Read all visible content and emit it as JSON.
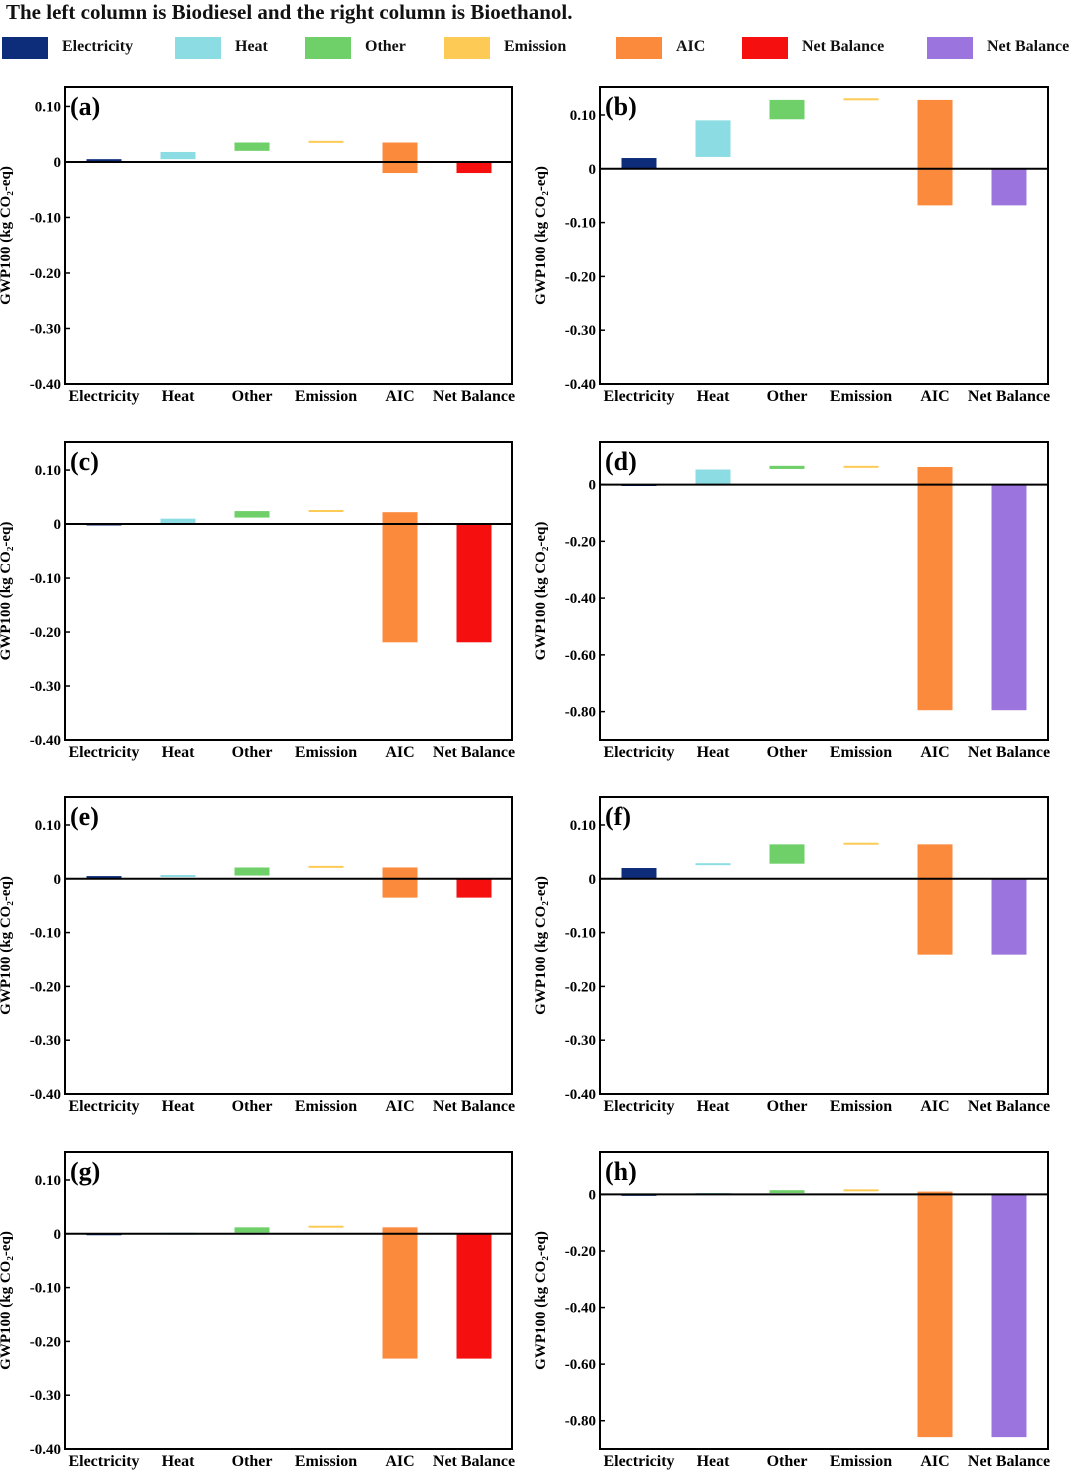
{
  "title": "The left column is Biodiesel and the right column is Bioethanol.",
  "colors": {
    "electricity": "#0d2c7a",
    "heat": "#8cdde3",
    "other": "#6fd06a",
    "emission": "#fdcb55",
    "aic": "#fb8a3c",
    "net_red": "#f60f0f",
    "net_purple": "#9b74dd"
  },
  "legend": [
    {
      "label": "Electricity",
      "color_key": "electricity"
    },
    {
      "label": "Heat",
      "color_key": "heat"
    },
    {
      "label": "Other",
      "color_key": "other"
    },
    {
      "label": "Emission",
      "color_key": "emission"
    },
    {
      "label": "AIC",
      "color_key": "aic"
    },
    {
      "label": "Net Balance",
      "color_key": "net_red"
    },
    {
      "label": "Net Balance",
      "color_key": "net_purple"
    }
  ],
  "chart_data": [
    {
      "panel": "(a)",
      "type": "waterfall",
      "ylabel": "GWP100 (kg CO₂-eq)",
      "ylim": [
        -0.4,
        0.135
      ],
      "yticks": [
        0.1,
        0,
        -0.1,
        -0.2,
        -0.3,
        -0.4
      ],
      "ytick_labels": [
        "0.10",
        "0",
        "-0.10",
        "-0.20",
        "-0.30",
        "-0.40"
      ],
      "categories": [
        "Electricity",
        "Heat",
        "Other",
        "Emission",
        "AIC",
        "Net Balance"
      ],
      "bars": [
        {
          "category": "Electricity",
          "start": 0,
          "end": 0.005,
          "color_key": "electricity"
        },
        {
          "category": "Heat",
          "start": 0.005,
          "end": 0.018,
          "color_key": "heat"
        },
        {
          "category": "Other",
          "start": 0.02,
          "end": 0.035,
          "color_key": "other"
        },
        {
          "category": "Emission",
          "start": 0.035,
          "end": 0.038,
          "color_key": "emission"
        },
        {
          "category": "AIC",
          "start": 0.035,
          "end": -0.02,
          "color_key": "aic"
        },
        {
          "category": "Net Balance",
          "start": 0,
          "end": -0.02,
          "color_key": "net_red"
        }
      ]
    },
    {
      "panel": "(b)",
      "type": "waterfall",
      "ylabel": "GWP100 (kg CO₂-eq)",
      "ylim": [
        -0.4,
        0.152
      ],
      "yticks": [
        0.1,
        0,
        -0.1,
        -0.2,
        -0.3,
        -0.4
      ],
      "ytick_labels": [
        "0.10",
        "0",
        "-0.10",
        "-0.20",
        "-0.30",
        "-0.40"
      ],
      "categories": [
        "Electricity",
        "Heat",
        "Other",
        "Emission",
        "AIC",
        "Net Balance"
      ],
      "bars": [
        {
          "category": "Electricity",
          "start": 0,
          "end": 0.02,
          "color_key": "electricity"
        },
        {
          "category": "Heat",
          "start": 0.022,
          "end": 0.09,
          "color_key": "heat"
        },
        {
          "category": "Other",
          "start": 0.092,
          "end": 0.128,
          "color_key": "other"
        },
        {
          "category": "Emission",
          "start": 0.128,
          "end": 0.131,
          "color_key": "emission"
        },
        {
          "category": "AIC",
          "start": 0.128,
          "end": -0.068,
          "color_key": "aic"
        },
        {
          "category": "Net Balance",
          "start": 0,
          "end": -0.068,
          "color_key": "net_purple"
        }
      ]
    },
    {
      "panel": "(c)",
      "type": "waterfall",
      "ylabel": "GWP100 (kg CO₂-eq)",
      "ylim": [
        -0.4,
        0.152
      ],
      "yticks": [
        0.1,
        0,
        -0.1,
        -0.2,
        -0.3,
        -0.4
      ],
      "ytick_labels": [
        "0.10",
        "0",
        "-0.10",
        "-0.20",
        "-0.30",
        "-0.40"
      ],
      "categories": [
        "Electricity",
        "Heat",
        "Other",
        "Emission",
        "AIC",
        "Net Balance"
      ],
      "bars": [
        {
          "category": "Electricity",
          "start": 0,
          "end": 0.001,
          "color_key": "electricity"
        },
        {
          "category": "Heat",
          "start": 0.002,
          "end": 0.01,
          "color_key": "heat"
        },
        {
          "category": "Other",
          "start": 0.012,
          "end": 0.024,
          "color_key": "other"
        },
        {
          "category": "Emission",
          "start": 0.024,
          "end": 0.026,
          "color_key": "emission"
        },
        {
          "category": "AIC",
          "start": 0.022,
          "end": -0.219,
          "color_key": "aic"
        },
        {
          "category": "Net Balance",
          "start": 0,
          "end": -0.219,
          "color_key": "net_red"
        }
      ]
    },
    {
      "panel": "(d)",
      "type": "waterfall",
      "ylabel": "GWP100 (kg CO₂-eq)",
      "ylim": [
        -0.9,
        0.15
      ],
      "yticks": [
        0,
        -0.2,
        -0.4,
        -0.6,
        -0.8
      ],
      "ytick_labels": [
        "0",
        "-0.20",
        "-0.40",
        "-0.60",
        "-0.80"
      ],
      "categories": [
        "Electricity",
        "Heat",
        "Other",
        "Emission",
        "AIC",
        "Net Balance"
      ],
      "bars": [
        {
          "category": "Electricity",
          "start": 0,
          "end": 0.002,
          "color_key": "electricity"
        },
        {
          "category": "Heat",
          "start": 0.002,
          "end": 0.053,
          "color_key": "heat"
        },
        {
          "category": "Other",
          "start": 0.055,
          "end": 0.066,
          "color_key": "other"
        },
        {
          "category": "Emission",
          "start": 0.06,
          "end": 0.066,
          "color_key": "emission"
        },
        {
          "category": "AIC",
          "start": 0.062,
          "end": -0.795,
          "color_key": "aic"
        },
        {
          "category": "Net Balance",
          "start": 0,
          "end": -0.795,
          "color_key": "net_purple"
        }
      ]
    },
    {
      "panel": "(e)",
      "type": "waterfall",
      "ylabel": "GWP100 (kg CO₂-eq)",
      "ylim": [
        -0.4,
        0.152
      ],
      "yticks": [
        0.1,
        0,
        -0.1,
        -0.2,
        -0.3,
        -0.4
      ],
      "ytick_labels": [
        "0.10",
        "0",
        "-0.10",
        "-0.20",
        "-0.30",
        "-0.40"
      ],
      "categories": [
        "Electricity",
        "Heat",
        "Other",
        "Emission",
        "AIC",
        "Net Balance"
      ],
      "bars": [
        {
          "category": "Electricity",
          "start": 0,
          "end": 0.005,
          "color_key": "electricity"
        },
        {
          "category": "Heat",
          "start": 0.004,
          "end": 0.007,
          "color_key": "heat"
        },
        {
          "category": "Other",
          "start": 0.006,
          "end": 0.021,
          "color_key": "other"
        },
        {
          "category": "Emission",
          "start": 0.021,
          "end": 0.024,
          "color_key": "emission"
        },
        {
          "category": "AIC",
          "start": 0.021,
          "end": -0.035,
          "color_key": "aic"
        },
        {
          "category": "Net Balance",
          "start": 0,
          "end": -0.035,
          "color_key": "net_red"
        }
      ]
    },
    {
      "panel": "(f)",
      "type": "waterfall",
      "ylabel": "GWP100 (kg CO₂-eq)",
      "ylim": [
        -0.4,
        0.152
      ],
      "yticks": [
        0.1,
        0,
        -0.1,
        -0.2,
        -0.3,
        -0.4
      ],
      "ytick_labels": [
        "0.10",
        "0",
        "-0.10",
        "-0.20",
        "-0.30",
        "-0.40"
      ],
      "categories": [
        "Electricity",
        "Heat",
        "Other",
        "Emission",
        "AIC",
        "Net Balance"
      ],
      "bars": [
        {
          "category": "Electricity",
          "start": 0,
          "end": 0.02,
          "color_key": "electricity"
        },
        {
          "category": "Heat",
          "start": 0.026,
          "end": 0.029,
          "color_key": "heat"
        },
        {
          "category": "Other",
          "start": 0.028,
          "end": 0.064,
          "color_key": "other"
        },
        {
          "category": "Emission",
          "start": 0.064,
          "end": 0.067,
          "color_key": "emission"
        },
        {
          "category": "AIC",
          "start": 0.064,
          "end": -0.141,
          "color_key": "aic"
        },
        {
          "category": "Net Balance",
          "start": 0,
          "end": -0.141,
          "color_key": "net_purple"
        }
      ]
    },
    {
      "panel": "(g)",
      "type": "waterfall",
      "ylabel": "GWP100 (kg CO₂-eq)",
      "ylim": [
        -0.4,
        0.152
      ],
      "yticks": [
        0.1,
        0,
        -0.1,
        -0.2,
        -0.3,
        -0.4
      ],
      "ytick_labels": [
        "0.10",
        "0",
        "-0.10",
        "-0.20",
        "-0.30",
        "-0.40"
      ],
      "categories": [
        "Electricity",
        "Heat",
        "Other",
        "Emission",
        "AIC",
        "Net Balance"
      ],
      "bars": [
        {
          "category": "Electricity",
          "start": 0,
          "end": 0.001,
          "color_key": "electricity"
        },
        {
          "category": "Heat",
          "start": 0.001,
          "end": 0.002,
          "color_key": "heat"
        },
        {
          "category": "Other",
          "start": 0.002,
          "end": 0.012,
          "color_key": "other"
        },
        {
          "category": "Emission",
          "start": 0.012,
          "end": 0.015,
          "color_key": "emission"
        },
        {
          "category": "AIC",
          "start": 0.012,
          "end": -0.232,
          "color_key": "aic"
        },
        {
          "category": "Net Balance",
          "start": 0,
          "end": -0.232,
          "color_key": "net_red"
        }
      ]
    },
    {
      "panel": "(h)",
      "type": "waterfall",
      "ylabel": "GWP100 (kg CO₂-eq)",
      "ylim": [
        -0.9,
        0.15
      ],
      "yticks": [
        0,
        -0.2,
        -0.4,
        -0.6,
        -0.8
      ],
      "ytick_labels": [
        "0",
        "-0.20",
        "-0.40",
        "-0.60",
        "-0.80"
      ],
      "categories": [
        "Electricity",
        "Heat",
        "Other",
        "Emission",
        "AIC",
        "Net Balance"
      ],
      "bars": [
        {
          "category": "Electricity",
          "start": 0,
          "end": 0.002,
          "color_key": "electricity"
        },
        {
          "category": "Heat",
          "start": 0.002,
          "end": 0.005,
          "color_key": "heat"
        },
        {
          "category": "Other",
          "start": 0.005,
          "end": 0.015,
          "color_key": "other"
        },
        {
          "category": "Emission",
          "start": 0.012,
          "end": 0.018,
          "color_key": "emission"
        },
        {
          "category": "AIC",
          "start": 0.01,
          "end": -0.858,
          "color_key": "aic"
        },
        {
          "category": "Net Balance",
          "start": 0,
          "end": -0.858,
          "color_key": "net_purple"
        }
      ]
    }
  ]
}
